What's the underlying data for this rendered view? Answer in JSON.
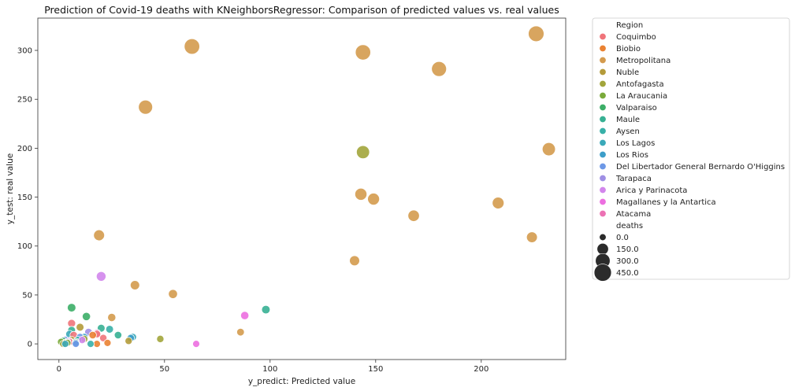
{
  "chart_data": {
    "type": "scatter",
    "title": "Prediction of Covid-19 deaths with KNeighborsRegressor: Comparison of predicted values vs. real values",
    "xlabel": "y_predict: Predicted value",
    "ylabel": "y_test: real value",
    "xlim": [
      -10,
      240
    ],
    "ylim": [
      -16,
      333
    ],
    "xticks": [
      0,
      50,
      100,
      150,
      200
    ],
    "yticks": [
      0,
      50,
      100,
      150,
      200,
      250,
      300
    ],
    "grid": false,
    "legend_placement": "outside-right",
    "legend": {
      "hue_title": "Region",
      "size_title": "deaths",
      "size_entries": [
        0.0,
        150.0,
        300.0,
        450.0
      ],
      "size_entry_labels": [
        "0.0",
        "150.0",
        "300.0",
        "450.0"
      ],
      "size_marker_color": "#2b2b2b"
    },
    "series": [
      {
        "name": "Coquimbo",
        "color": "#f0747a",
        "points": [
          [
            6,
            21
          ],
          [
            7,
            9
          ],
          [
            5,
            2
          ],
          [
            18,
            10
          ],
          [
            21,
            6
          ]
        ]
      },
      {
        "name": "Biobio",
        "color": "#ea8232",
        "points": [
          [
            23,
            1
          ],
          [
            18,
            0
          ],
          [
            8,
            2
          ],
          [
            16,
            9
          ]
        ]
      },
      {
        "name": "Metropolitana",
        "color": "#d49b4e",
        "points": [
          [
            226,
            317
          ],
          [
            63,
            304
          ],
          [
            144,
            298
          ],
          [
            180,
            281
          ],
          [
            41,
            242
          ],
          [
            232,
            199
          ],
          [
            143,
            153
          ],
          [
            149,
            148
          ],
          [
            208,
            144
          ],
          [
            168,
            131
          ],
          [
            19,
            111
          ],
          [
            224,
            109
          ],
          [
            140,
            85
          ],
          [
            36,
            60
          ],
          [
            54,
            51
          ],
          [
            25,
            27
          ],
          [
            86,
            12
          ]
        ]
      },
      {
        "name": "Nuble",
        "color": "#b49b3a",
        "points": [
          [
            10,
            17
          ],
          [
            33,
            3
          ],
          [
            6,
            4
          ],
          [
            3,
            1
          ]
        ]
      },
      {
        "name": "Antofagasta",
        "color": "#a2a53b",
        "points": [
          [
            144,
            196
          ],
          [
            48,
            5
          ],
          [
            2,
            0
          ],
          [
            12,
            5
          ]
        ]
      },
      {
        "name": "La Araucania",
        "color": "#7aaa3a",
        "points": [
          [
            4,
            1
          ],
          [
            1,
            2
          ]
        ]
      },
      {
        "name": "Valparaiso",
        "color": "#3cae67",
        "points": [
          [
            6,
            37
          ],
          [
            13,
            28
          ],
          [
            2,
            3
          ],
          [
            8,
            2
          ]
        ]
      },
      {
        "name": "Maule",
        "color": "#37b093",
        "points": [
          [
            98,
            35
          ],
          [
            28,
            9
          ],
          [
            20,
            16
          ],
          [
            6,
            14
          ]
        ]
      },
      {
        "name": "Aysen",
        "color": "#38b0a8",
        "points": [
          [
            24,
            15
          ],
          [
            15,
            0
          ],
          [
            9,
            4
          ]
        ]
      },
      {
        "name": "Los Lagos",
        "color": "#3aa9b9",
        "points": [
          [
            35,
            7
          ],
          [
            5,
            10
          ],
          [
            3,
            0
          ]
        ]
      },
      {
        "name": "Los Rios",
        "color": "#3d9ec9",
        "points": [
          [
            8,
            1
          ],
          [
            34,
            6
          ],
          [
            12,
            7
          ]
        ]
      },
      {
        "name": "Del Libertador General Bernardo O'Higgins",
        "color": "#6d98e6",
        "points": [
          [
            10,
            7
          ],
          [
            3,
            4
          ],
          [
            8,
            0
          ]
        ]
      },
      {
        "name": "Tarapaca",
        "color": "#9f8fe4",
        "points": [
          [
            14,
            12
          ],
          [
            4,
            2
          ]
        ]
      },
      {
        "name": "Arica y Parinacota",
        "color": "#d286ec",
        "points": [
          [
            20,
            69
          ],
          [
            11,
            4
          ]
        ]
      },
      {
        "name": "Magallanes y la Antartica",
        "color": "#ec6fe0",
        "points": [
          [
            88,
            29
          ],
          [
            65,
            0
          ]
        ]
      },
      {
        "name": "Atacama",
        "color": "#ec72b4",
        "points": [
          [
            5,
            3
          ],
          [
            18,
            11
          ]
        ]
      }
    ]
  }
}
